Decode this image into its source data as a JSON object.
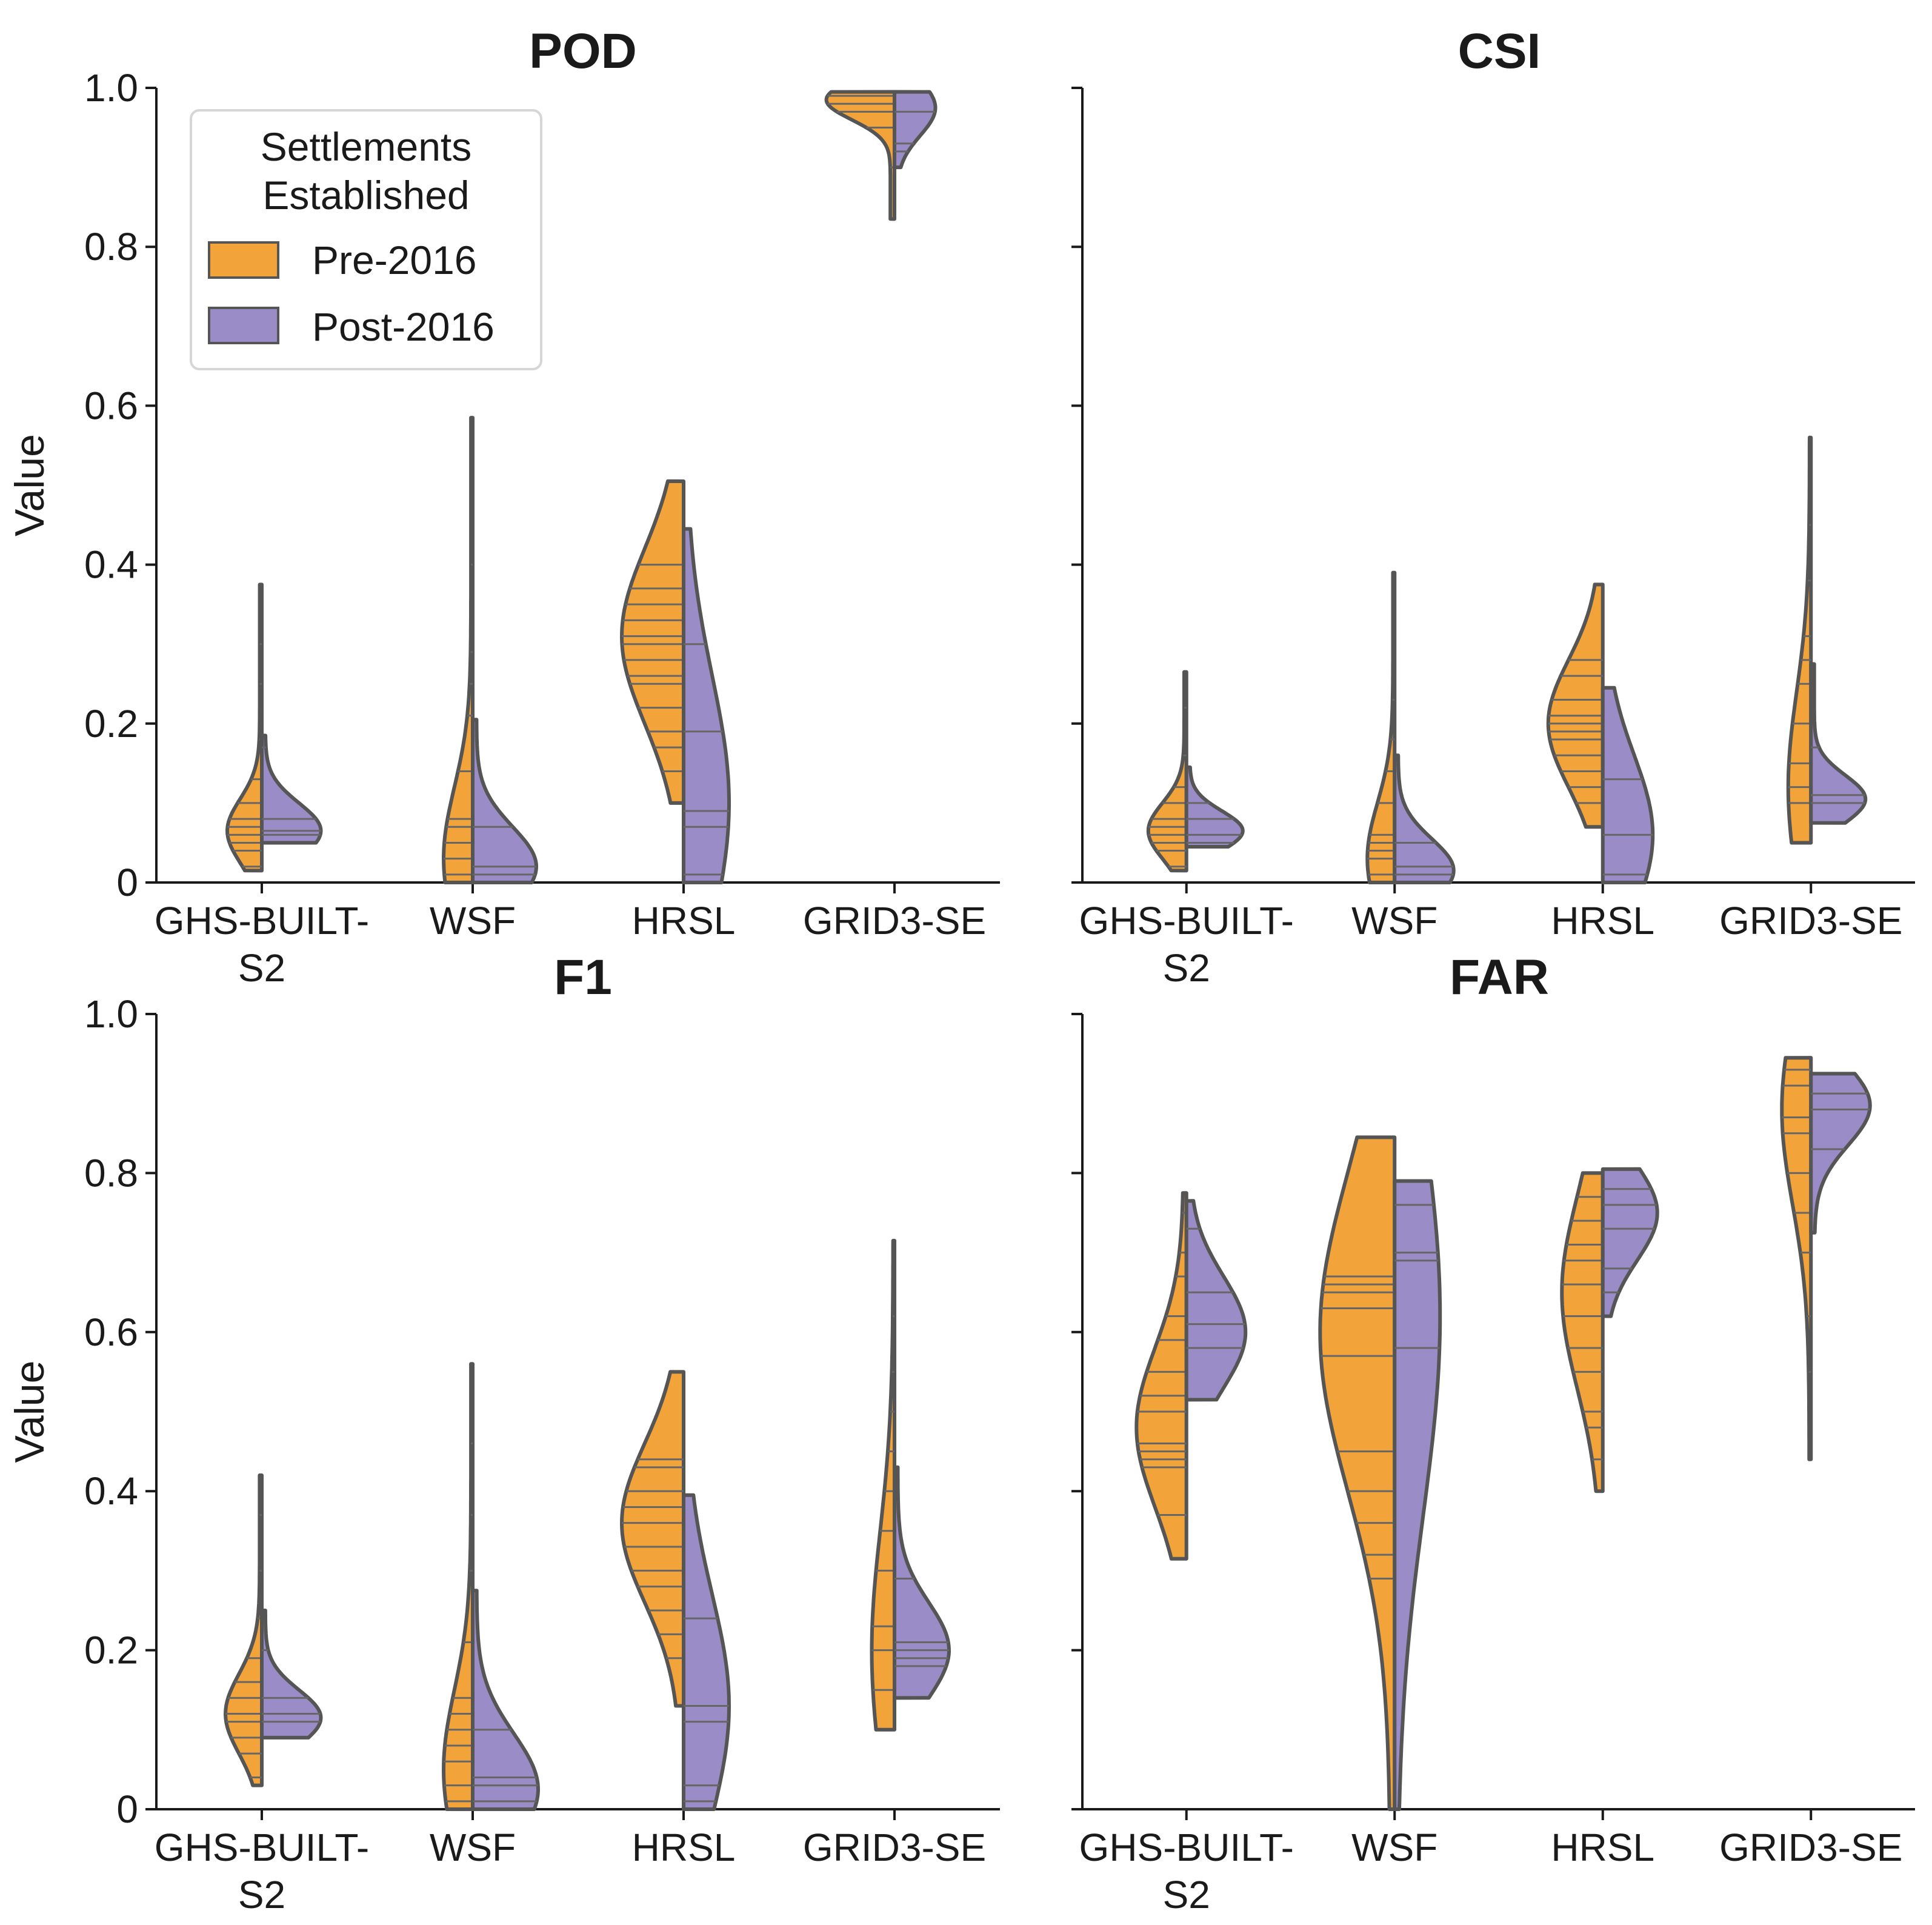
{
  "colors": {
    "pre": "#F2A33A",
    "post": "#9A8CC6",
    "edge": "#555555"
  },
  "legend": {
    "title_line1": "Settlements",
    "title_line2": "Established",
    "items": [
      {
        "label": "Pre-2016",
        "color": "#F2A33A"
      },
      {
        "label": "Post-2016",
        "color": "#9A8CC6"
      }
    ]
  },
  "chart_data": [
    {
      "type": "violin",
      "title": "POD",
      "ylabel": "Value",
      "ylim": [
        0,
        1.0
      ],
      "yticks": [
        "0",
        "0.2",
        "0.4",
        "0.6",
        "0.8",
        "1.0"
      ],
      "categories": [
        "GHS-BUILT-S2",
        "WSF",
        "HRSL",
        "GRID3-SE"
      ],
      "xticklabels": [
        [
          "GHS-BUILT-",
          "S2"
        ],
        [
          "WSF"
        ],
        [
          "HRSL"
        ],
        [
          "GRID3-SE"
        ]
      ],
      "series": [
        {
          "name": "Pre-2016",
          "violins": [
            {
              "range": [
                0.015,
                0.375
              ],
              "peak": 0.065,
              "spread": 0.04,
              "width": 0.38,
              "sticks": [
                0.02,
                0.04,
                0.05,
                0.06,
                0.07,
                0.08,
                0.1,
                0.13,
                0.18,
                0.25,
                0.3
              ]
            },
            {
              "range": [
                0.0,
                0.585
              ],
              "peak": 0.03,
              "spread": 0.09,
              "width": 0.32,
              "sticks": [
                0.01,
                0.03,
                0.05,
                0.07,
                0.08,
                0.14,
                0.21,
                0.25,
                0.29,
                0.4
              ]
            },
            {
              "range": [
                0.1,
                0.505
              ],
              "peak": 0.31,
              "spread": 0.11,
              "width": 0.68,
              "sticks": [
                0.14,
                0.17,
                0.19,
                0.22,
                0.25,
                0.26,
                0.28,
                0.3,
                0.31,
                0.33,
                0.35,
                0.37,
                0.4
              ]
            },
            {
              "range": [
                0.835,
                0.995
              ],
              "peak": 0.985,
              "spread": 0.025,
              "width": 0.75,
              "sticks": [
                0.9,
                0.95,
                0.97,
                0.98,
                0.99
              ]
            }
          ]
        },
        {
          "name": "Post-2016",
          "violins": [
            {
              "range": [
                0.05,
                0.185
              ],
              "peak": 0.065,
              "spread": 0.035,
              "width": 0.65,
              "sticks": [
                0.06,
                0.065,
                0.08,
                0.17
              ]
            },
            {
              "range": [
                0.0,
                0.205
              ],
              "peak": 0.02,
              "spread": 0.05,
              "width": 0.7,
              "sticks": [
                0.01,
                0.02,
                0.07
              ]
            },
            {
              "range": [
                0.0,
                0.445
              ],
              "peak": 0.1,
              "spread": 0.16,
              "width": 0.5,
              "sticks": [
                0.01,
                0.07,
                0.09,
                0.19,
                0.3
              ]
            },
            {
              "range": [
                0.9,
                0.995
              ],
              "peak": 0.975,
              "spread": 0.035,
              "width": 0.45,
              "sticks": [
                0.92,
                0.93,
                0.97
              ]
            }
          ]
        }
      ]
    },
    {
      "type": "violin",
      "title": "CSI",
      "ylabel": "",
      "ylim": [
        0,
        1.0
      ],
      "yticks": [],
      "categories": [
        "GHS-BUILT-S2",
        "WSF",
        "HRSL",
        "GRID3-SE"
      ],
      "xticklabels": [
        [
          "GHS-BUILT-",
          "S2"
        ],
        [
          "WSF"
        ],
        [
          "HRSL"
        ],
        [
          "GRID3-SE"
        ]
      ],
      "series": [
        {
          "name": "Pre-2016",
          "violins": [
            {
              "range": [
                0.015,
                0.265
              ],
              "peak": 0.065,
              "spread": 0.035,
              "width": 0.42,
              "sticks": [
                0.02,
                0.04,
                0.05,
                0.06,
                0.07,
                0.08,
                0.1,
                0.12,
                0.16,
                0.22
              ]
            },
            {
              "range": [
                0.0,
                0.39
              ],
              "peak": 0.03,
              "spread": 0.07,
              "width": 0.3,
              "sticks": [
                0.01,
                0.03,
                0.04,
                0.05,
                0.06,
                0.1,
                0.14,
                0.18,
                0.23
              ]
            },
            {
              "range": [
                0.07,
                0.375
              ],
              "peak": 0.2,
              "spread": 0.08,
              "width": 0.6,
              "sticks": [
                0.1,
                0.12,
                0.14,
                0.16,
                0.18,
                0.19,
                0.2,
                0.21,
                0.23,
                0.26,
                0.28
              ]
            },
            {
              "range": [
                0.05,
                0.56
              ],
              "peak": 0.12,
              "spread": 0.12,
              "width": 0.25,
              "sticks": [
                0.1,
                0.12,
                0.15,
                0.2,
                0.25,
                0.28,
                0.31,
                0.38,
                0.45
              ]
            }
          ]
        },
        {
          "name": "Post-2016",
          "violins": [
            {
              "range": [
                0.045,
                0.145
              ],
              "peak": 0.065,
              "spread": 0.025,
              "width": 0.62,
              "sticks": [
                0.05,
                0.06,
                0.08,
                0.1
              ]
            },
            {
              "range": [
                0.0,
                0.16
              ],
              "peak": 0.015,
              "spread": 0.04,
              "width": 0.65,
              "sticks": [
                0.01,
                0.02,
                0.05
              ]
            },
            {
              "range": [
                0.0,
                0.245
              ],
              "peak": 0.06,
              "spread": 0.1,
              "width": 0.55,
              "sticks": [
                0.01,
                0.06,
                0.13
              ]
            },
            {
              "range": [
                0.075,
                0.275
              ],
              "peak": 0.105,
              "spread": 0.03,
              "width": 0.6,
              "sticks": [
                0.1,
                0.11,
                0.17
              ]
            }
          ]
        }
      ]
    },
    {
      "type": "violin",
      "title": "F1",
      "ylabel": "Value",
      "ylim": [
        0,
        1.0
      ],
      "yticks": [
        "0",
        "0.2",
        "0.4",
        "0.6",
        "0.8",
        "1.0"
      ],
      "categories": [
        "GHS-BUILT-S2",
        "WSF",
        "HRSL",
        "GRID3-SE"
      ],
      "xticklabels": [
        [
          "GHS-BUILT-",
          "S2"
        ],
        [
          "WSF"
        ],
        [
          "HRSL"
        ],
        [
          "GRID3-SE"
        ]
      ],
      "series": [
        {
          "name": "Pre-2016",
          "violins": [
            {
              "range": [
                0.03,
                0.42
              ],
              "peak": 0.12,
              "spread": 0.05,
              "width": 0.4,
              "sticks": [
                0.04,
                0.07,
                0.09,
                0.11,
                0.12,
                0.14,
                0.16,
                0.19,
                0.24,
                0.3,
                0.37
              ]
            },
            {
              "range": [
                0.0,
                0.56
              ],
              "peak": 0.05,
              "spread": 0.1,
              "width": 0.32,
              "sticks": [
                0.01,
                0.03,
                0.06,
                0.08,
                0.1,
                0.12,
                0.14,
                0.21,
                0.3,
                0.37,
                0.46
              ]
            },
            {
              "range": [
                0.13,
                0.55
              ],
              "peak": 0.36,
              "spread": 0.1,
              "width": 0.68,
              "sticks": [
                0.19,
                0.22,
                0.25,
                0.28,
                0.3,
                0.33,
                0.36,
                0.38,
                0.4,
                0.43,
                0.44
              ]
            },
            {
              "range": [
                0.1,
                0.715
              ],
              "peak": 0.2,
              "spread": 0.15,
              "width": 0.25,
              "sticks": [
                0.15,
                0.2,
                0.23,
                0.3,
                0.35,
                0.4,
                0.45,
                0.5,
                0.55,
                0.62
              ]
            }
          ]
        },
        {
          "name": "Post-2016",
          "violins": [
            {
              "range": [
                0.09,
                0.25
              ],
              "peak": 0.115,
              "spread": 0.035,
              "width": 0.65,
              "sticks": [
                0.11,
                0.12,
                0.14,
                0.2
              ]
            },
            {
              "range": [
                0.0,
                0.275
              ],
              "peak": 0.025,
              "spread": 0.07,
              "width": 0.72,
              "sticks": [
                0.01,
                0.03,
                0.04,
                0.1
              ]
            },
            {
              "range": [
                0.0,
                0.395
              ],
              "peak": 0.13,
              "spread": 0.14,
              "width": 0.5,
              "sticks": [
                0.01,
                0.03,
                0.11,
                0.13,
                0.24
              ]
            },
            {
              "range": [
                0.14,
                0.43
              ],
              "peak": 0.2,
              "spread": 0.06,
              "width": 0.6,
              "sticks": [
                0.18,
                0.19,
                0.2,
                0.21,
                0.29
              ]
            }
          ]
        }
      ]
    },
    {
      "type": "violin",
      "title": "FAR",
      "ylabel": "",
      "ylim": [
        0,
        1.0
      ],
      "yticks": [],
      "categories": [
        "GHS-BUILT-S2",
        "WSF",
        "HRSL",
        "GRID3-SE"
      ],
      "xticklabels": [
        [
          "GHS-BUILT-",
          "S2"
        ],
        [
          "WSF"
        ],
        [
          "HRSL"
        ],
        [
          "GRID3-SE"
        ]
      ],
      "series": [
        {
          "name": "Pre-2016",
          "violins": [
            {
              "range": [
                0.315,
                0.775
              ],
              "peak": 0.48,
              "spread": 0.1,
              "width": 0.55,
              "sticks": [
                0.37,
                0.43,
                0.44,
                0.45,
                0.46,
                0.5,
                0.52,
                0.55,
                0.59,
                0.62,
                0.67,
                0.7,
                0.75
              ]
            },
            {
              "range": [
                0.0,
                0.845
              ],
              "peak": 0.6,
              "spread": 0.2,
              "width": 0.82,
              "sticks": [
                0.29,
                0.32,
                0.36,
                0.4,
                0.45,
                0.57,
                0.63,
                0.65,
                0.66,
                0.67
              ]
            },
            {
              "range": [
                0.4,
                0.8
              ],
              "peak": 0.65,
              "spread": 0.12,
              "width": 0.45,
              "sticks": [
                0.44,
                0.48,
                0.5,
                0.55,
                0.58,
                0.62,
                0.66,
                0.69,
                0.71,
                0.74,
                0.77
              ]
            },
            {
              "range": [
                0.44,
                0.945
              ],
              "peak": 0.88,
              "spread": 0.12,
              "width": 0.32,
              "sticks": [
                0.55,
                0.62,
                0.7,
                0.75,
                0.8,
                0.85,
                0.87,
                0.91,
                0.93
              ]
            }
          ]
        },
        {
          "name": "Post-2016",
          "violins": [
            {
              "range": [
                0.515,
                0.765
              ],
              "peak": 0.6,
              "spread": 0.07,
              "width": 0.65,
              "sticks": [
                0.58,
                0.61,
                0.65,
                0.73
              ]
            },
            {
              "range": [
                0.0,
                0.79
              ],
              "peak": 0.62,
              "spread": 0.25,
              "width": 0.5,
              "sticks": [
                0.58,
                0.69,
                0.7,
                0.76
              ]
            },
            {
              "range": [
                0.62,
                0.805
              ],
              "peak": 0.75,
              "spread": 0.06,
              "width": 0.6,
              "sticks": [
                0.65,
                0.68,
                0.73,
                0.76,
                0.78
              ]
            },
            {
              "range": [
                0.725,
                0.925
              ],
              "peak": 0.885,
              "spread": 0.05,
              "width": 0.65,
              "sticks": [
                0.83,
                0.88,
                0.9
              ]
            }
          ]
        }
      ]
    }
  ]
}
